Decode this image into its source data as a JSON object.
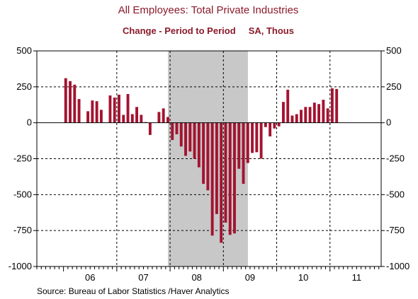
{
  "chart_data": {
    "type": "bar",
    "title": "All Employees: Total Private Industries",
    "subtitle": "Change - Period to Period     SA, Thous",
    "source": "Source:  Bureau of Labor Statistics /Haver Analytics",
    "ylim": [
      -1000,
      500
    ],
    "yticks": [
      500,
      250,
      0,
      -250,
      -500,
      -750,
      -1000
    ],
    "ytick_labels": [
      "500",
      "250",
      "0",
      "-250",
      "-500",
      "-750",
      "-1000"
    ],
    "xlim": [
      2005.5,
      2011.96
    ],
    "year_labels": [
      {
        "label": "06",
        "x": 2006.5
      },
      {
        "label": "07",
        "x": 2007.5
      },
      {
        "label": "08",
        "x": 2008.5
      },
      {
        "label": "09",
        "x": 2009.5
      },
      {
        "label": "10",
        "x": 2010.5
      },
      {
        "label": "11",
        "x": 2011.5
      }
    ],
    "year_gridlines": [
      2007,
      2008,
      2009,
      2010,
      2011
    ],
    "recession": {
      "start": 2007.96,
      "end": 2009.46,
      "color": "#c8c8c8"
    },
    "bar_color": "#a31330",
    "start": "2006-01",
    "values": [
      310,
      290,
      265,
      165,
      0,
      80,
      155,
      150,
      90,
      0,
      190,
      175,
      195,
      55,
      200,
      60,
      110,
      55,
      5,
      -85,
      0,
      75,
      100,
      40,
      -120,
      -80,
      -165,
      -230,
      -200,
      -250,
      -310,
      -425,
      -470,
      -785,
      -635,
      -835,
      -695,
      -780,
      -770,
      -320,
      -425,
      -280,
      -210,
      -205,
      -250,
      -30,
      -95,
      -40,
      -25,
      145,
      230,
      50,
      60,
      90,
      110,
      110,
      140,
      130,
      160,
      100,
      240,
      235
    ]
  }
}
